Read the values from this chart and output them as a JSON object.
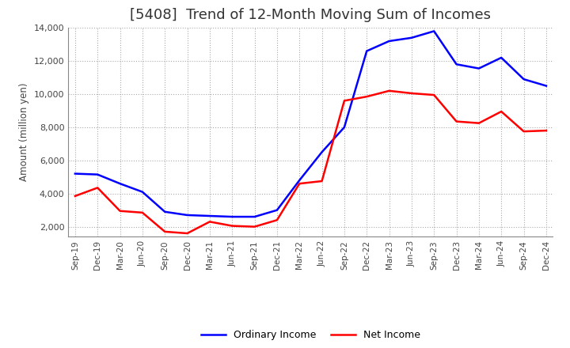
{
  "title": "[5408]  Trend of 12-Month Moving Sum of Incomes",
  "ylabel": "Amount (million yen)",
  "x_labels": [
    "Sep-19",
    "Dec-19",
    "Mar-20",
    "Jun-20",
    "Sep-20",
    "Dec-20",
    "Mar-21",
    "Jun-21",
    "Sep-21",
    "Dec-21",
    "Mar-22",
    "Jun-22",
    "Sep-22",
    "Dec-22",
    "Mar-23",
    "Jun-23",
    "Sep-23",
    "Dec-23",
    "Mar-24",
    "Jun-24",
    "Sep-24",
    "Dec-24"
  ],
  "ordinary_income": [
    5200,
    5150,
    4600,
    4100,
    2900,
    2700,
    2650,
    2600,
    2600,
    3000,
    4800,
    6500,
    8000,
    12600,
    13200,
    13400,
    13800,
    11800,
    11550,
    12200,
    10900,
    10500
  ],
  "net_income": [
    3850,
    4350,
    2950,
    2850,
    1700,
    1600,
    2300,
    2050,
    2000,
    2400,
    4600,
    4750,
    9600,
    9850,
    10200,
    10050,
    9950,
    8350,
    8250,
    8950,
    7750,
    7800
  ],
  "ordinary_color": "#0000FF",
  "net_color": "#FF0000",
  "background_color": "#FFFFFF",
  "grid_color": "#AAAAAA",
  "ylim": [
    1400,
    14000
  ],
  "yticks": [
    2000,
    4000,
    6000,
    8000,
    10000,
    12000,
    14000
  ],
  "title_fontsize": 13,
  "legend_labels": [
    "Ordinary Income",
    "Net Income"
  ]
}
